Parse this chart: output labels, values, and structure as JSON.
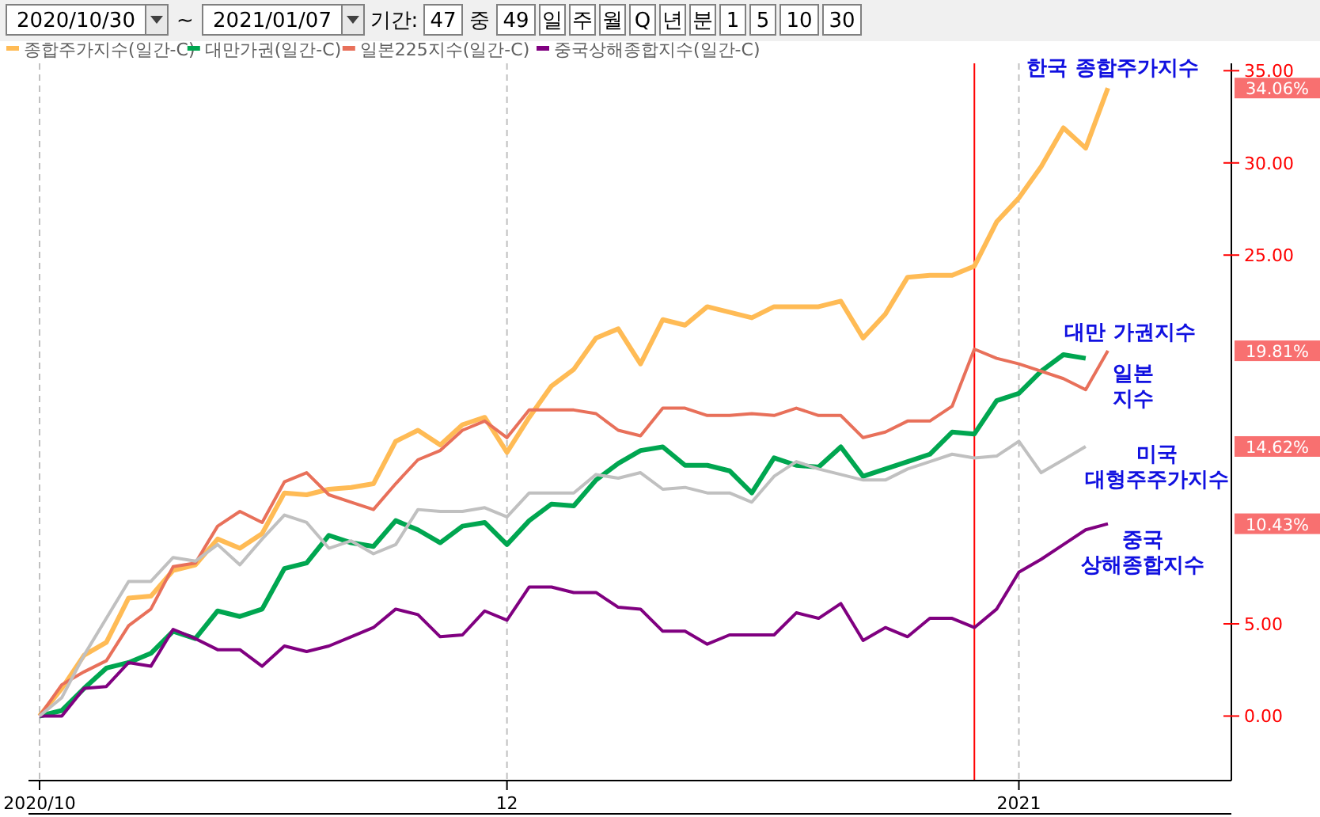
{
  "chart_data": {
    "type": "line",
    "legend": "top left",
    "grid": "x",
    "tick_labels": "xy",
    "ylim": [
      -3.5,
      35.4
    ],
    "yticks": [
      {
        "value": 0,
        "label": "0.00"
      },
      {
        "value": 5,
        "label": "5.00"
      },
      {
        "value": 25,
        "label": "25.00"
      },
      {
        "value": 30,
        "label": "30.00"
      },
      {
        "value": 35,
        "label": "35.00"
      }
    ],
    "categories": [
      "2020/10",
      null,
      null,
      null,
      null,
      null,
      null,
      null,
      null,
      null,
      null,
      null,
      null,
      null,
      null,
      null,
      null,
      null,
      null,
      null,
      null,
      "12",
      null,
      null,
      null,
      null,
      null,
      null,
      null,
      null,
      null,
      null,
      null,
      null,
      null,
      null,
      null,
      null,
      null,
      null,
      null,
      null,
      null,
      null,
      "2021",
      null,
      null,
      null,
      null
    ],
    "series": [
      {
        "name": "종합주가지수(일간-C)",
        "color": "#ffbb55",
        "values": [
          0,
          1.5,
          3.3,
          4.0,
          6.4,
          6.5,
          7.9,
          8.2,
          9.6,
          9.1,
          9.9,
          12.1,
          12.0,
          12.3,
          12.4,
          12.6,
          14.9,
          15.5,
          14.7,
          15.8,
          16.2,
          14.3,
          16.2,
          17.9,
          18.8,
          20.5,
          21.0,
          19.1,
          21.5,
          21.2,
          22.2,
          21.9,
          21.6,
          22.2,
          22.2,
          22.2,
          22.5,
          20.5,
          21.8,
          23.8,
          23.9,
          23.9,
          24.4,
          26.8,
          28.1,
          29.8,
          31.9,
          30.8,
          34.06
        ]
      },
      {
        "name": "대만가권(일간-C)",
        "color": "#00a650",
        "values": [
          0,
          0.3,
          1.5,
          2.6,
          2.9,
          3.4,
          4.6,
          4.2,
          5.7,
          5.4,
          5.8,
          8.0,
          8.3,
          9.8,
          9.4,
          9.2,
          10.6,
          10.1,
          9.4,
          10.3,
          10.5,
          9.3,
          10.6,
          11.5,
          11.4,
          12.8,
          13.7,
          14.4,
          14.6,
          13.6,
          13.6,
          13.3,
          12.1,
          14.0,
          13.6,
          13.5,
          14.6,
          13.0,
          13.4,
          13.8,
          14.2,
          15.4,
          15.3,
          17.1,
          17.5,
          18.7,
          19.6,
          19.4,
          null
        ]
      },
      {
        "name": "일본225지수(일간-C)",
        "color": "#e8705a",
        "values": [
          0,
          1.7,
          2.4,
          3.0,
          4.9,
          5.8,
          8.1,
          8.3,
          10.3,
          11.1,
          10.5,
          12.7,
          13.2,
          12.0,
          11.6,
          11.2,
          12.6,
          13.9,
          14.4,
          15.5,
          16.0,
          15.1,
          16.6,
          16.6,
          16.6,
          16.4,
          15.5,
          15.2,
          16.7,
          16.7,
          16.3,
          16.3,
          16.4,
          16.3,
          16.7,
          16.3,
          16.3,
          15.1,
          15.4,
          16.0,
          16.0,
          16.8,
          19.9,
          19.4,
          19.1,
          18.7,
          18.3,
          17.7,
          19.81
        ]
      },
      {
        "name": "중국상해종합지수(일간-C)",
        "color": "#800080",
        "values": [
          0,
          0.0,
          1.5,
          1.6,
          2.9,
          2.7,
          4.7,
          4.2,
          3.6,
          3.6,
          2.7,
          3.8,
          3.5,
          3.8,
          4.3,
          4.8,
          5.8,
          5.5,
          4.3,
          4.4,
          5.7,
          5.2,
          7.0,
          7.0,
          6.7,
          6.7,
          5.9,
          5.8,
          4.6,
          4.6,
          3.9,
          4.4,
          4.4,
          4.4,
          5.6,
          5.3,
          6.1,
          4.1,
          4.8,
          4.3,
          5.3,
          5.3,
          4.8,
          5.8,
          7.8,
          8.5,
          9.3,
          10.1,
          10.43
        ]
      },
      {
        "color": "#c0c0c0",
        "values": [
          0,
          1.0,
          3.3,
          5.3,
          7.3,
          7.3,
          8.6,
          8.4,
          9.3,
          8.2,
          9.6,
          10.9,
          10.5,
          9.1,
          9.5,
          8.8,
          9.3,
          11.2,
          11.1,
          11.1,
          11.3,
          10.8,
          12.1,
          12.1,
          12.1,
          13.1,
          12.9,
          13.2,
          12.3,
          12.4,
          12.1,
          12.1,
          11.6,
          13.0,
          13.8,
          13.4,
          13.1,
          12.8,
          12.8,
          13.4,
          13.8,
          14.2,
          14.0,
          14.1,
          14.9,
          13.2,
          13.9,
          14.62,
          null
        ]
      }
    ],
    "annotations": [
      "2020/10/30",
      "~",
      "2021/01/07",
      "기간:",
      "47",
      "중",
      "49",
      "일",
      "주",
      "월",
      "Q",
      "년",
      "분",
      "1",
      "5",
      "10",
      "30",
      "한국 종합주가지수",
      "대만 가권지수",
      "일본\n지수",
      "미국\n대형주주가지수",
      "중국\n상해종합지수",
      "34.06%",
      "19.81%",
      "14.62%",
      "10.43%"
    ]
  }
}
